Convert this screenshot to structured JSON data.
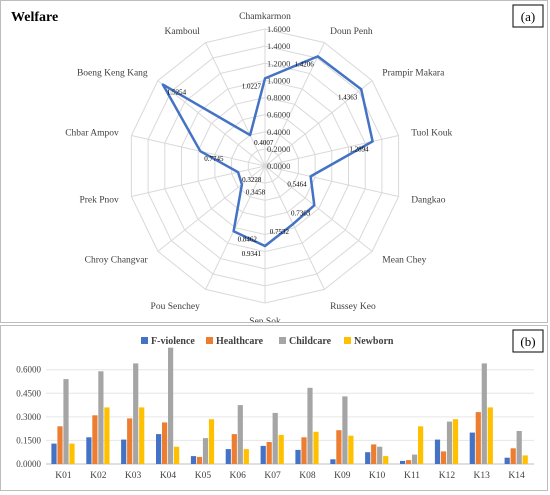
{
  "panel_a": {
    "title": "Welfare",
    "label": "(a)"
  },
  "panel_b": {
    "label": "(b)"
  },
  "chart_data": [
    {
      "type": "radar",
      "title": "Welfare",
      "categories": [
        "Chamkarmon",
        "Doun Penh",
        "Prampir Makara",
        "Tuol Kouk",
        "Dangkao",
        "Mean Chey",
        "Russey Keo",
        "Sen Sok",
        "Pou Senchey",
        "Chroy Changvar",
        "Prek Pnov",
        "Chbar Ampov",
        "Boeng Keng Kang",
        "Kamboul"
      ],
      "value_labels": [
        "1.0227",
        "1.4206",
        "1.4363",
        "1.2894",
        "0.5464",
        "0.7363",
        "0.7532",
        "0.9341",
        "0.8462",
        "0.3458",
        "0.3228",
        "0.7745",
        "1.5254",
        "0.4007"
      ],
      "values": [
        1.0227,
        1.4206,
        1.4363,
        1.2894,
        0.5464,
        0.7363,
        0.7532,
        0.9341,
        0.8462,
        0.3458,
        0.3228,
        0.7745,
        1.5254,
        0.4007
      ],
      "rticks": [
        "0.0000",
        "0.2000",
        "0.4000",
        "0.6000",
        "0.8000",
        "1.0000",
        "1.2000",
        "1.4000",
        "1.6000"
      ],
      "rlim": [
        0,
        1.6
      ],
      "color": "#4472c4"
    },
    {
      "type": "bar",
      "categories": [
        "K01",
        "K02",
        "K03",
        "K04",
        "K05",
        "K06",
        "K07",
        "K08",
        "K09",
        "K10",
        "K11",
        "K12",
        "K13",
        "K14"
      ],
      "series": [
        {
          "name": "F-violence",
          "color": "#4472c4",
          "values": [
            0.13,
            0.17,
            0.155,
            0.19,
            0.05,
            0.095,
            0.115,
            0.09,
            0.03,
            0.075,
            0.02,
            0.155,
            0.2,
            0.04
          ]
        },
        {
          "name": "Healthcare",
          "color": "#ed7d31",
          "values": [
            0.24,
            0.31,
            0.29,
            0.265,
            0.045,
            0.19,
            0.14,
            0.17,
            0.215,
            0.125,
            0.025,
            0.08,
            0.33,
            0.1
          ]
        },
        {
          "name": "Childcare",
          "color": "#a5a5a5",
          "values": [
            0.54,
            0.59,
            0.64,
            0.74,
            0.165,
            0.375,
            0.325,
            0.485,
            0.43,
            0.11,
            0.06,
            0.27,
            0.64,
            0.21
          ]
        },
        {
          "name": "Newborn",
          "color": "#ffc000",
          "values": [
            0.13,
            0.36,
            0.36,
            0.11,
            0.285,
            0.095,
            0.185,
            0.205,
            0.18,
            0.05,
            0.24,
            0.285,
            0.36,
            0.055
          ]
        }
      ],
      "yticks": [
        "0.0000",
        "0.1500",
        "0.3000",
        "0.4500",
        "0.6000"
      ],
      "ylim": [
        0,
        0.7
      ],
      "legend": "top",
      "grid": true
    }
  ]
}
